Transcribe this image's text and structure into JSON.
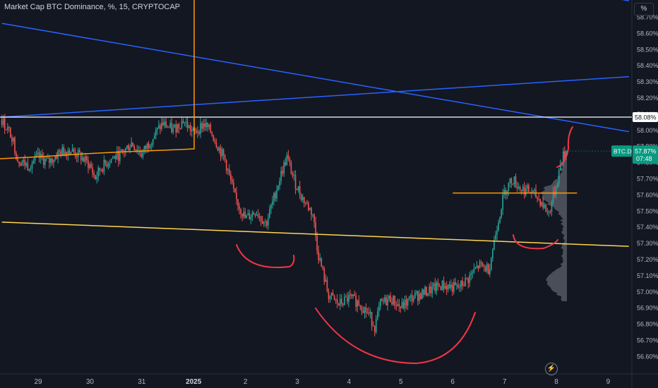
{
  "header": {
    "title": "Market Cap BTC Dominance, %, 15, CRYPTOCAP",
    "unit_button": "%"
  },
  "price_tags": {
    "level_label": "58.08%",
    "symbol": "BTC.D",
    "last_value": "57.87%",
    "countdown": "07:48"
  },
  "colors": {
    "background": "#131722",
    "candle_up": "#26a69a",
    "candle_down": "#ef5350",
    "trendline_blue": "#2962ff",
    "level_white": "#ffffff",
    "level_orange": "#ff9800",
    "support_yellow": "#ffd54f",
    "arc_red": "#f23645",
    "last_price_tag": "#089981",
    "volume_profile": "#787b86"
  },
  "icons": {
    "flash": "lightning-icon"
  },
  "chart_data": {
    "type": "candlestick",
    "title": "Market Cap BTC Dominance, %, 15, CRYPTOCAP",
    "x_ticks": [
      "29",
      "30",
      "31",
      "2025",
      "2",
      "3",
      "4",
      "5",
      "6",
      "7",
      "8",
      "9"
    ],
    "y_ticks": [
      "56.60%",
      "56.70%",
      "56.80%",
      "56.90%",
      "57.00%",
      "57.10%",
      "57.20%",
      "57.30%",
      "57.40%",
      "57.50%",
      "57.60%",
      "57.70%",
      "57.80%",
      "57.90%",
      "58.00%",
      "58.10%",
      "58.20%",
      "58.30%",
      "58.40%",
      "58.50%",
      "58.60%",
      "58.70%"
    ],
    "ylim": [
      56.57,
      58.87
    ],
    "xlim": [
      -0.7,
      11.4
    ],
    "last_value": 57.87,
    "approx_close_path": [
      [
        -0.7,
        58.06
      ],
      [
        -0.5,
        57.96
      ],
      [
        -0.4,
        57.82
      ],
      [
        -0.2,
        57.78
      ],
      [
        0.0,
        57.83
      ],
      [
        0.2,
        57.8
      ],
      [
        0.4,
        57.86
      ],
      [
        0.6,
        57.88
      ],
      [
        0.8,
        57.84
      ],
      [
        1.0,
        57.78
      ],
      [
        1.1,
        57.7
      ],
      [
        1.2,
        57.76
      ],
      [
        1.4,
        57.82
      ],
      [
        1.6,
        57.85
      ],
      [
        1.8,
        57.92
      ],
      [
        2.0,
        57.85
      ],
      [
        2.2,
        57.95
      ],
      [
        2.4,
        58.04
      ],
      [
        2.6,
        58.0
      ],
      [
        2.8,
        58.06
      ],
      [
        3.0,
        57.98
      ],
      [
        3.2,
        58.04
      ],
      [
        3.35,
        57.98
      ],
      [
        3.5,
        57.88
      ],
      [
        3.6,
        57.82
      ],
      [
        3.8,
        57.58
      ],
      [
        4.0,
        57.45
      ],
      [
        4.2,
        57.5
      ],
      [
        4.4,
        57.42
      ],
      [
        4.55,
        57.58
      ],
      [
        4.7,
        57.74
      ],
      [
        4.8,
        57.83
      ],
      [
        4.95,
        57.68
      ],
      [
        5.1,
        57.58
      ],
      [
        5.3,
        57.48
      ],
      [
        5.4,
        57.24
      ],
      [
        5.6,
        56.98
      ],
      [
        5.8,
        56.92
      ],
      [
        6.0,
        56.96
      ],
      [
        6.2,
        56.93
      ],
      [
        6.4,
        56.85
      ],
      [
        6.5,
        56.78
      ],
      [
        6.6,
        56.92
      ],
      [
        6.8,
        56.96
      ],
      [
        7.0,
        56.9
      ],
      [
        7.2,
        56.96
      ],
      [
        7.5,
        57.0
      ],
      [
        7.8,
        57.04
      ],
      [
        8.1,
        57.02
      ],
      [
        8.3,
        57.08
      ],
      [
        8.5,
        57.16
      ],
      [
        8.7,
        57.14
      ],
      [
        8.85,
        57.4
      ],
      [
        9.0,
        57.62
      ],
      [
        9.15,
        57.7
      ],
      [
        9.3,
        57.64
      ],
      [
        9.5,
        57.62
      ],
      [
        9.7,
        57.56
      ],
      [
        9.85,
        57.48
      ],
      [
        10.0,
        57.66
      ],
      [
        10.1,
        57.82
      ],
      [
        10.2,
        57.87
      ]
    ],
    "horizontal_levels": [
      {
        "value": 58.08,
        "color": "#ffffff"
      },
      {
        "value": 57.61,
        "color": "#ff9800",
        "x_from": 8.0,
        "x_to": 10.4
      }
    ],
    "trendlines": [
      {
        "color": "#2962ff",
        "points": [
          [
            -0.7,
            58.66
          ],
          [
            11.4,
            57.99
          ]
        ]
      },
      {
        "color": "#2962ff",
        "points": [
          [
            -0.7,
            58.08
          ],
          [
            11.4,
            58.33
          ]
        ]
      },
      {
        "color": "#2962ff",
        "points": [
          [
            10.0,
            58.88
          ],
          [
            11.4,
            58.8
          ]
        ]
      },
      {
        "color": "#ffd54f",
        "points": [
          [
            -0.7,
            57.43
          ],
          [
            11.4,
            57.28
          ]
        ]
      }
    ],
    "volume_profile_range": [
      56.94,
      57.87
    ],
    "annotations": [
      "red arc drawings",
      "orange vertical marker line at 2025"
    ]
  }
}
